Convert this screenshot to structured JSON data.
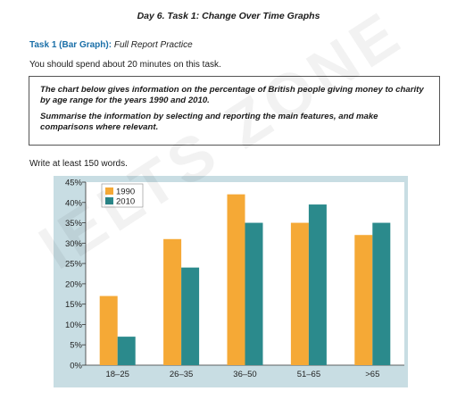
{
  "header": {
    "title": "Day 6. Task 1: Change Over Time Graphs"
  },
  "task": {
    "label": "Task 1 (Bar Graph):",
    "subtitle": "Full Report Practice",
    "instruction": "You should spend about 20 minutes on this task."
  },
  "prompt": {
    "line1": "The chart below gives information on the percentage of British people giving money to charity by age range for the years 1990 and 2010.",
    "line2": "Summarise the information by selecting and reporting the main features, and make comparisons where relevant."
  },
  "word_count": "Write at least 150 words.",
  "watermark": "IELTS ZONE",
  "colors": {
    "series_1990": "#f5a936",
    "series_2010": "#2b8a8c",
    "panel": "#c8dde3",
    "plot_bg": "#ffffff"
  },
  "chart_data": {
    "type": "bar",
    "categories": [
      "18–25",
      "26–35",
      "36–50",
      "51–65",
      ">65"
    ],
    "series": [
      {
        "name": "1990",
        "values": [
          17,
          31,
          42,
          35,
          32
        ]
      },
      {
        "name": "2010",
        "values": [
          7,
          24,
          35,
          39.5,
          35
        ]
      }
    ],
    "ylim": [
      0,
      45
    ],
    "yticks": [
      "0%",
      "5%",
      "10%",
      "15%",
      "20%",
      "25%",
      "30%",
      "35%",
      "40%",
      "45%"
    ],
    "grid": false,
    "legend": "top-left"
  }
}
